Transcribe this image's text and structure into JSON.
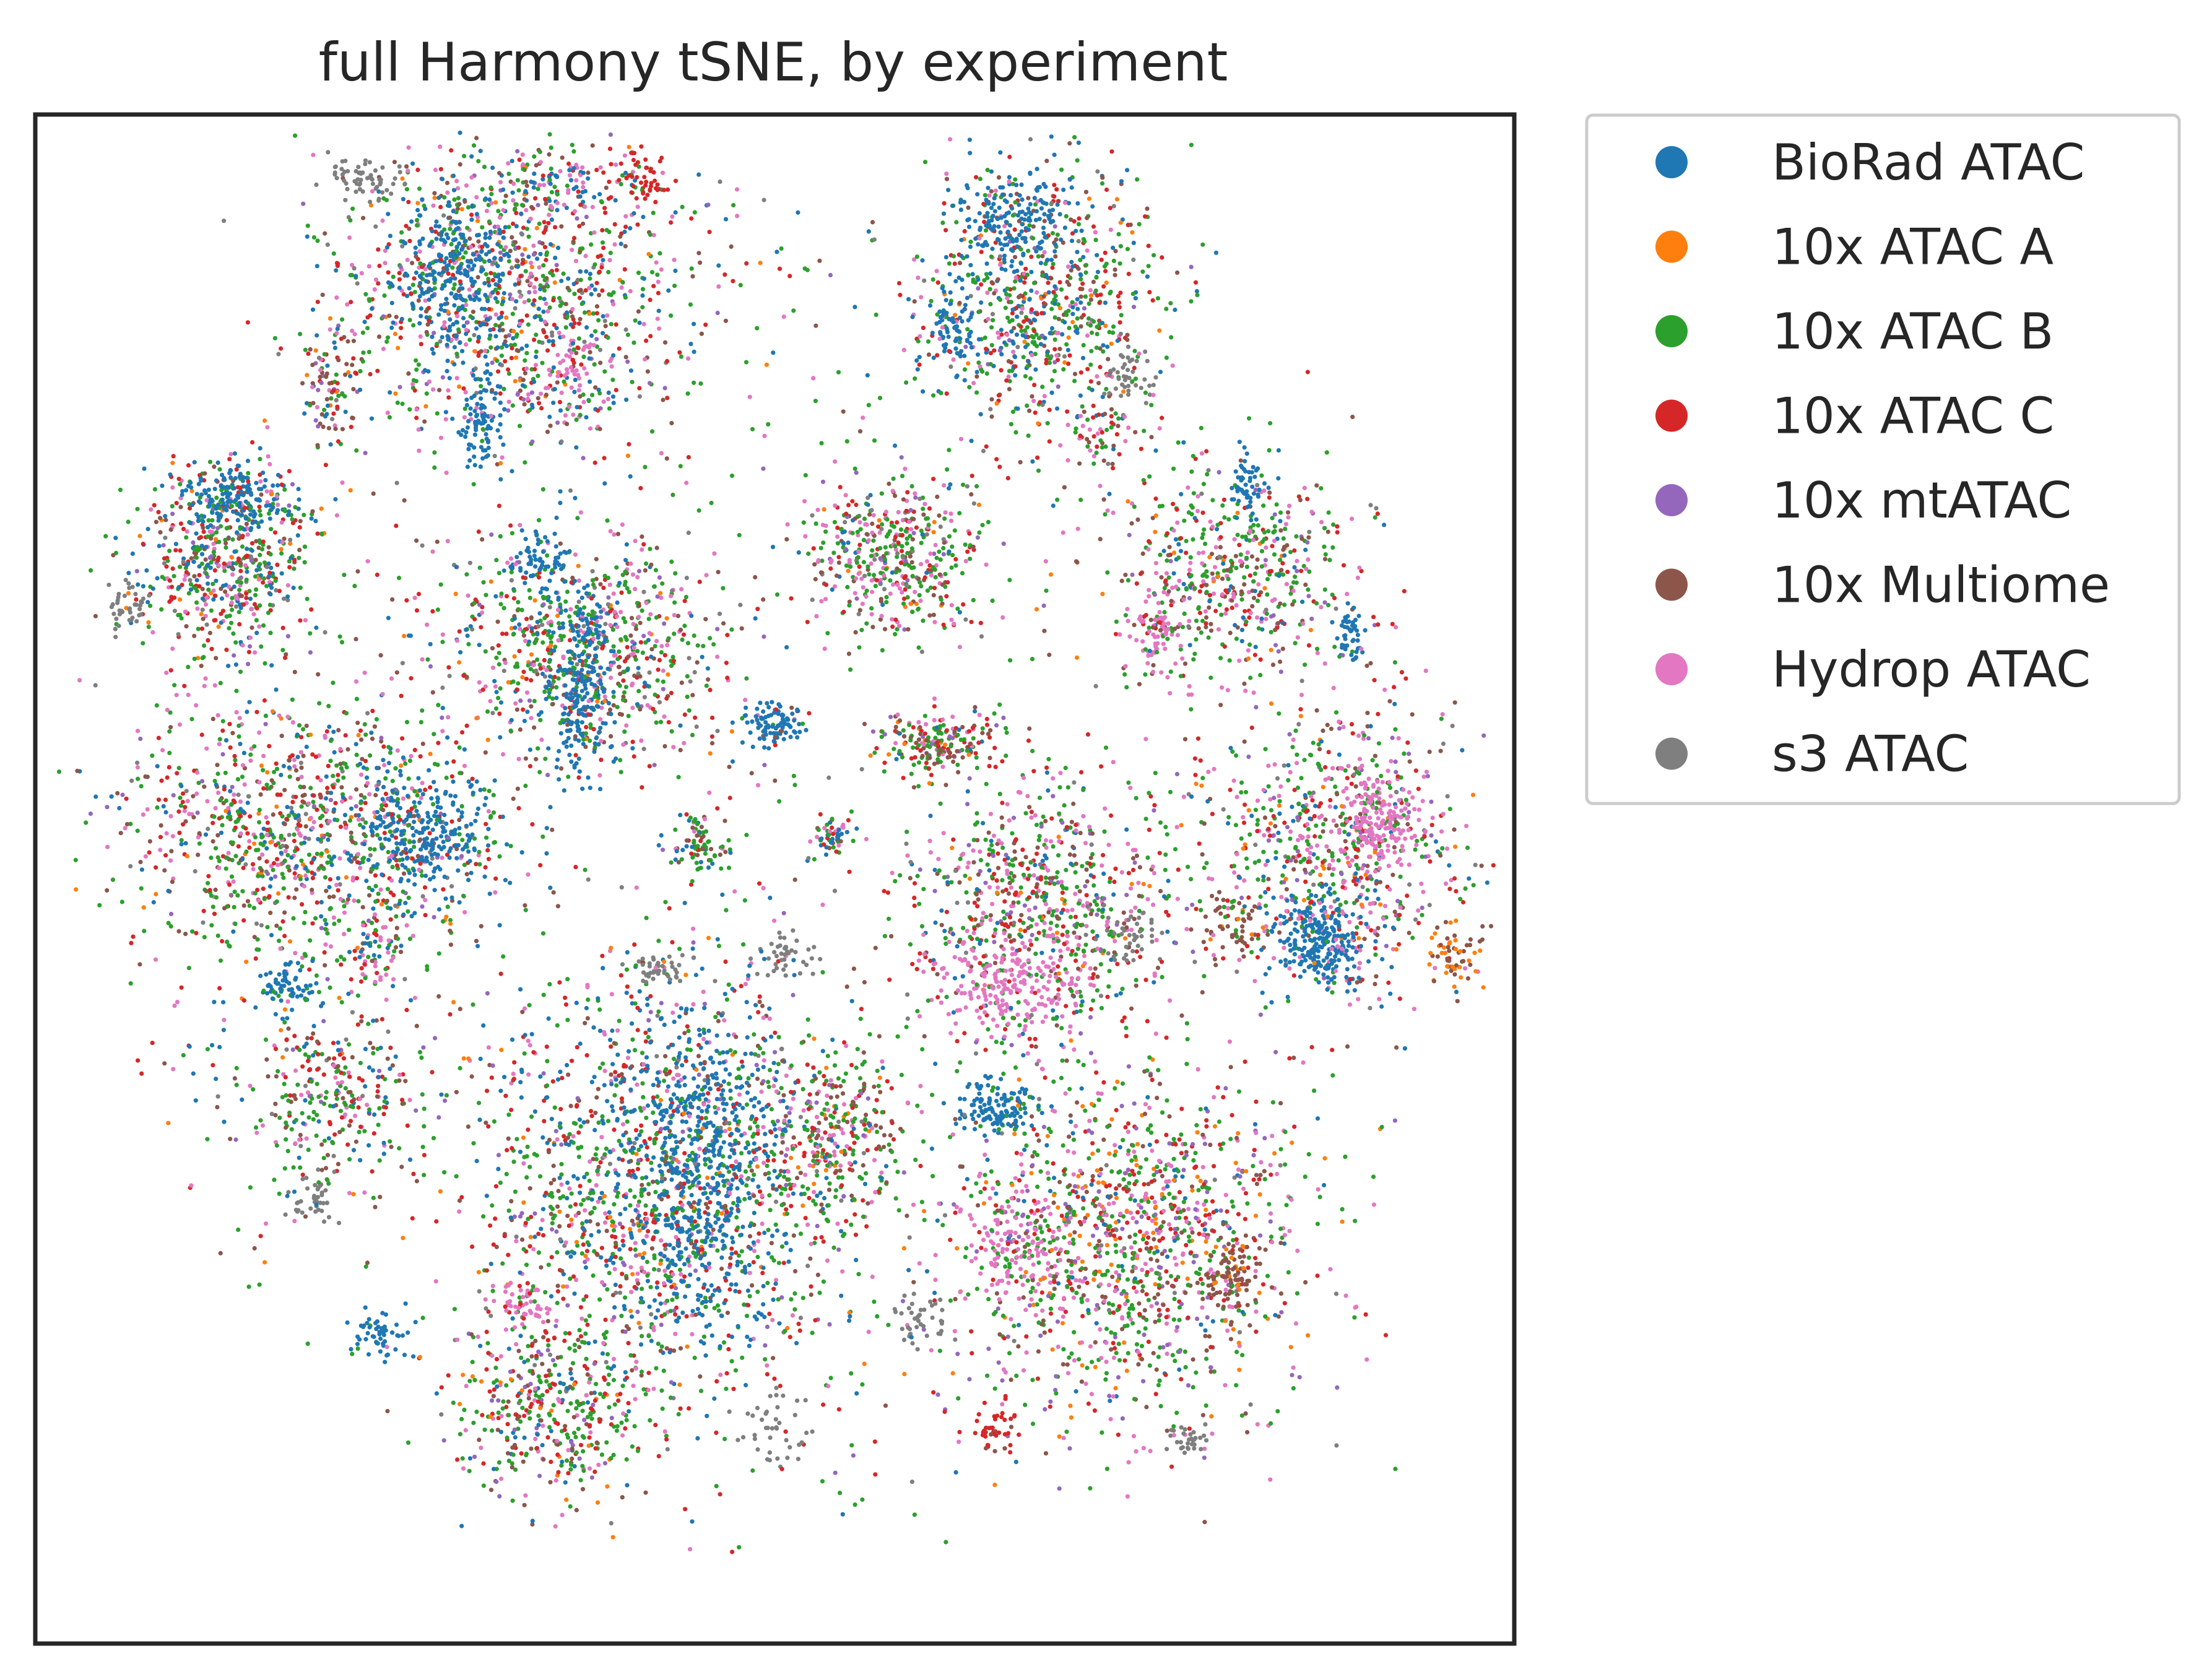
{
  "chart_data": {
    "type": "scatter",
    "title": "full Harmony tSNE, by experiment",
    "xlabel": "",
    "ylabel": "",
    "xlim": [
      -50,
      50
    ],
    "ylim": [
      -50,
      50
    ],
    "ticks": "none",
    "grid": false,
    "legend": {
      "placement": "outside-top-right",
      "marker": "circle"
    },
    "series": [
      {
        "name": "BioRad ATAC",
        "color": "#1f77b4"
      },
      {
        "name": "10x ATAC A",
        "color": "#ff7f0e"
      },
      {
        "name": "10x ATAC B",
        "color": "#2ca02c"
      },
      {
        "name": "10x ATAC C",
        "color": "#d62728"
      },
      {
        "name": "10x mtATAC",
        "color": "#9467bd"
      },
      {
        "name": "10x Multiome",
        "color": "#8c564b"
      },
      {
        "name": "Hydrop ATAC",
        "color": "#e377c2"
      },
      {
        "name": "s3 ATAC",
        "color": "#7f7f7f"
      }
    ],
    "clusters": [
      {
        "cx": -18,
        "cy": 39,
        "rx": 12,
        "ry": 10,
        "n": 1100,
        "mix": [
          0.16,
          0.05,
          0.26,
          0.15,
          0.05,
          0.13,
          0.16,
          0.04
        ]
      },
      {
        "cx": -22,
        "cy": 40,
        "rx": 4,
        "ry": 5,
        "n": 260,
        "mix": [
          0.9,
          0,
          0.04,
          0.02,
          0,
          0.02,
          0.02,
          0
        ]
      },
      {
        "cx": -14,
        "cy": 33,
        "rx": 3,
        "ry": 4,
        "n": 90,
        "mix": [
          0.2,
          0,
          0.2,
          0.05,
          0,
          0.05,
          0.5,
          0
        ]
      },
      {
        "cx": -28,
        "cy": 46,
        "rx": 2.5,
        "ry": 1.5,
        "n": 60,
        "mix": [
          0,
          0,
          0,
          0,
          0,
          0,
          0,
          1
        ]
      },
      {
        "cx": -15,
        "cy": 45,
        "rx": 4,
        "ry": 2.5,
        "n": 80,
        "mix": [
          0.5,
          0,
          0.1,
          0.1,
          0,
          0.1,
          0.2,
          0
        ]
      },
      {
        "cx": -9,
        "cy": 46,
        "rx": 2,
        "ry": 2,
        "n": 60,
        "mix": [
          0,
          0,
          0.1,
          0.85,
          0,
          0.05,
          0,
          0
        ]
      },
      {
        "cx": -30,
        "cy": 32,
        "rx": 2,
        "ry": 4,
        "n": 90,
        "mix": [
          0.1,
          0.05,
          0.2,
          0.1,
          0.05,
          0.3,
          0.15,
          0.05
        ]
      },
      {
        "cx": -20,
        "cy": 30,
        "rx": 1.5,
        "ry": 3,
        "n": 90,
        "mix": [
          0.95,
          0,
          0,
          0,
          0,
          0,
          0.05,
          0
        ]
      },
      {
        "cx": -37,
        "cy": 21,
        "rx": 6,
        "ry": 6,
        "n": 600,
        "mix": [
          0.16,
          0.04,
          0.28,
          0.2,
          0.04,
          0.12,
          0.12,
          0.04
        ]
      },
      {
        "cx": -37,
        "cy": 25,
        "rx": 4,
        "ry": 2,
        "n": 160,
        "mix": [
          0.9,
          0,
          0.05,
          0.03,
          0,
          0,
          0.02,
          0
        ]
      },
      {
        "cx": -44,
        "cy": 18,
        "rx": 1.5,
        "ry": 1.5,
        "n": 40,
        "mix": [
          0,
          0,
          0,
          0,
          0,
          0,
          0,
          1
        ]
      },
      {
        "cx": 18,
        "cy": 38,
        "rx": 8,
        "ry": 9,
        "n": 750,
        "mix": [
          0.18,
          0.03,
          0.32,
          0.17,
          0.03,
          0.12,
          0.1,
          0.05
        ]
      },
      {
        "cx": 16,
        "cy": 43,
        "rx": 4,
        "ry": 3,
        "n": 170,
        "mix": [
          0.92,
          0,
          0.04,
          0,
          0,
          0.02,
          0.02,
          0
        ]
      },
      {
        "cx": 12,
        "cy": 36,
        "rx": 2,
        "ry": 3,
        "n": 80,
        "mix": [
          0.9,
          0,
          0.05,
          0,
          0,
          0,
          0.05,
          0
        ]
      },
      {
        "cx": 24,
        "cy": 33,
        "rx": 2,
        "ry": 2,
        "n": 40,
        "mix": [
          0,
          0,
          0,
          0,
          0,
          0,
          0,
          1
        ]
      },
      {
        "cx": 22,
        "cy": 29,
        "rx": 2,
        "ry": 2,
        "n": 40,
        "mix": [
          0,
          0,
          0.2,
          0.2,
          0,
          0.3,
          0.3,
          0
        ]
      },
      {
        "cx": 8,
        "cy": 21,
        "rx": 6,
        "ry": 5,
        "n": 450,
        "mix": [
          0.05,
          0.03,
          0.33,
          0.13,
          0.03,
          0.13,
          0.25,
          0.05
        ]
      },
      {
        "cx": 31,
        "cy": 20,
        "rx": 8,
        "ry": 7,
        "n": 520,
        "mix": [
          0.08,
          0.04,
          0.32,
          0.16,
          0.04,
          0.16,
          0.18,
          0.02
        ]
      },
      {
        "cx": 26,
        "cy": 16,
        "rx": 2,
        "ry": 3,
        "n": 90,
        "mix": [
          0,
          0,
          0.1,
          0.05,
          0,
          0.05,
          0.8,
          0
        ]
      },
      {
        "cx": 32,
        "cy": 26,
        "rx": 1,
        "ry": 2,
        "n": 50,
        "mix": [
          1,
          0,
          0,
          0,
          0,
          0,
          0,
          0
        ]
      },
      {
        "cx": 39,
        "cy": 16,
        "rx": 1,
        "ry": 2,
        "n": 45,
        "mix": [
          1,
          0,
          0,
          0,
          0,
          0,
          0,
          0
        ]
      },
      {
        "cx": -13,
        "cy": 15,
        "rx": 9,
        "ry": 7,
        "n": 750,
        "mix": [
          0.12,
          0.03,
          0.3,
          0.16,
          0.03,
          0.14,
          0.16,
          0.06
        ]
      },
      {
        "cx": -13,
        "cy": 13,
        "rx": 2,
        "ry": 7,
        "n": 230,
        "mix": [
          0.9,
          0,
          0.04,
          0.02,
          0,
          0.02,
          0.02,
          0
        ]
      },
      {
        "cx": -16,
        "cy": 21,
        "rx": 2,
        "ry": 2,
        "n": 70,
        "mix": [
          0.9,
          0,
          0.05,
          0,
          0,
          0,
          0.05,
          0
        ]
      },
      {
        "cx": -32,
        "cy": 3,
        "rx": 12,
        "ry": 9,
        "n": 1050,
        "mix": [
          0.12,
          0.04,
          0.3,
          0.18,
          0.04,
          0.14,
          0.14,
          0.04
        ]
      },
      {
        "cx": -24,
        "cy": 3,
        "rx": 6,
        "ry": 4,
        "n": 280,
        "mix": [
          0.88,
          0,
          0.05,
          0.03,
          0,
          0.02,
          0.02,
          0
        ]
      },
      {
        "cx": -33,
        "cy": -7,
        "rx": 2,
        "ry": 2,
        "n": 70,
        "mix": [
          0.9,
          0,
          0.05,
          0,
          0,
          0,
          0.05,
          0
        ]
      },
      {
        "cx": -27,
        "cy": -5,
        "rx": 3,
        "ry": 2,
        "n": 60,
        "mix": [
          0.2,
          0,
          0.2,
          0.1,
          0,
          0.1,
          0.4,
          0
        ]
      },
      {
        "cx": -31,
        "cy": -21,
        "rx": 2,
        "ry": 2,
        "n": 40,
        "mix": [
          0,
          0,
          0,
          0,
          0,
          0,
          0,
          1
        ]
      },
      {
        "cx": -30,
        "cy": -14,
        "rx": 6,
        "ry": 6,
        "n": 300,
        "mix": [
          0.1,
          0.04,
          0.32,
          0.2,
          0.04,
          0.14,
          0.12,
          0.04
        ]
      },
      {
        "cx": -8,
        "cy": -20,
        "rx": 12,
        "ry": 14,
        "n": 1400,
        "mix": [
          0.22,
          0.04,
          0.28,
          0.16,
          0.04,
          0.1,
          0.13,
          0.03
        ]
      },
      {
        "cx": -5,
        "cy": -19,
        "rx": 5,
        "ry": 11,
        "n": 560,
        "mix": [
          0.9,
          0,
          0.04,
          0.02,
          0,
          0.02,
          0.02,
          0
        ]
      },
      {
        "cx": -15,
        "cy": -35,
        "rx": 6,
        "ry": 6,
        "n": 400,
        "mix": [
          0.05,
          0.05,
          0.34,
          0.2,
          0.08,
          0.14,
          0.12,
          0.02
        ]
      },
      {
        "cx": -27,
        "cy": -30,
        "rx": 2,
        "ry": 1.5,
        "n": 60,
        "mix": [
          0.95,
          0,
          0.05,
          0,
          0,
          0,
          0,
          0
        ]
      },
      {
        "cx": -17,
        "cy": -28,
        "rx": 2,
        "ry": 1.5,
        "n": 50,
        "mix": [
          0,
          0,
          0.1,
          0.05,
          0,
          0,
          0.85,
          0
        ]
      },
      {
        "cx": 4,
        "cy": -17,
        "rx": 5,
        "ry": 6,
        "n": 350,
        "mix": [
          0.05,
          0.05,
          0.36,
          0.2,
          0.04,
          0.15,
          0.13,
          0.02
        ]
      },
      {
        "cx": 0,
        "cy": -36,
        "rx": 2.5,
        "ry": 2.5,
        "n": 40,
        "mix": [
          0,
          0,
          0,
          0,
          0,
          0,
          0,
          1
        ]
      },
      {
        "cx": 0,
        "cy": 10,
        "rx": 2,
        "ry": 1.5,
        "n": 90,
        "mix": [
          0.93,
          0,
          0.04,
          0.03,
          0,
          0,
          0,
          0
        ]
      },
      {
        "cx": -5,
        "cy": 2,
        "rx": 2,
        "ry": 2,
        "n": 80,
        "mix": [
          0.1,
          0,
          0.5,
          0.1,
          0,
          0.2,
          0.1,
          0
        ]
      },
      {
        "cx": 4,
        "cy": 3,
        "rx": 1.5,
        "ry": 1.2,
        "n": 50,
        "mix": [
          0.3,
          0,
          0.2,
          0.2,
          0,
          0.1,
          0.2,
          0
        ]
      },
      {
        "cx": -8,
        "cy": -6,
        "rx": 2,
        "ry": 1,
        "n": 40,
        "mix": [
          0,
          0,
          0,
          0,
          0,
          0,
          0,
          1
        ]
      },
      {
        "cx": 1,
        "cy": -5,
        "rx": 2,
        "ry": 1.5,
        "n": 40,
        "mix": [
          0,
          0,
          0,
          0,
          0,
          0,
          0,
          1
        ]
      },
      {
        "cx": 11,
        "cy": 9,
        "rx": 4,
        "ry": 2,
        "n": 200,
        "mix": [
          0.05,
          0.05,
          0.3,
          0.2,
          0.05,
          0.25,
          0.1,
          0
        ]
      },
      {
        "cx": 18,
        "cy": -2,
        "rx": 9,
        "ry": 8,
        "n": 750,
        "mix": [
          0.07,
          0.04,
          0.3,
          0.2,
          0.05,
          0.13,
          0.19,
          0.02
        ]
      },
      {
        "cx": 16,
        "cy": -7,
        "rx": 5,
        "ry": 3,
        "n": 200,
        "mix": [
          0,
          0,
          0.05,
          0,
          0,
          0,
          0.95,
          0
        ]
      },
      {
        "cx": 24,
        "cy": -4,
        "rx": 2,
        "ry": 2,
        "n": 40,
        "mix": [
          0,
          0,
          0,
          0,
          0,
          0,
          0,
          1
        ]
      },
      {
        "cx": 31,
        "cy": -3,
        "rx": 2,
        "ry": 2,
        "n": 50,
        "mix": [
          0,
          0.1,
          0,
          0,
          0,
          0.9,
          0,
          0
        ]
      },
      {
        "cx": 38,
        "cy": 2,
        "rx": 9,
        "ry": 9,
        "n": 700,
        "mix": [
          0.08,
          0.06,
          0.27,
          0.15,
          0.06,
          0.12,
          0.22,
          0.04
        ]
      },
      {
        "cx": 41,
        "cy": 4,
        "rx": 3,
        "ry": 3,
        "n": 180,
        "mix": [
          0,
          0,
          0.05,
          0,
          0,
          0,
          0.95,
          0
        ]
      },
      {
        "cx": 37,
        "cy": -4,
        "rx": 3,
        "ry": 3,
        "n": 260,
        "mix": [
          0.95,
          0,
          0.02,
          0,
          0,
          0,
          0.03,
          0
        ]
      },
      {
        "cx": 46,
        "cy": -5,
        "rx": 2,
        "ry": 2,
        "n": 60,
        "mix": [
          0,
          0.4,
          0,
          0,
          0,
          0.6,
          0,
          0
        ]
      },
      {
        "cx": 24,
        "cy": -24,
        "rx": 12,
        "ry": 12,
        "n": 1300,
        "mix": [
          0.05,
          0.08,
          0.3,
          0.16,
          0.1,
          0.12,
          0.17,
          0.02
        ]
      },
      {
        "cx": 15,
        "cy": -15,
        "rx": 3,
        "ry": 2,
        "n": 130,
        "mix": [
          0.95,
          0,
          0.05,
          0,
          0,
          0,
          0,
          0
        ]
      },
      {
        "cx": 16,
        "cy": -24,
        "rx": 4,
        "ry": 4,
        "n": 130,
        "mix": [
          0,
          0,
          0.1,
          0.05,
          0,
          0,
          0.85,
          0
        ]
      },
      {
        "cx": 31,
        "cy": -26,
        "rx": 2,
        "ry": 3,
        "n": 90,
        "mix": [
          0,
          0.1,
          0,
          0,
          0,
          0.9,
          0,
          0
        ]
      },
      {
        "cx": 10,
        "cy": -29,
        "rx": 2,
        "ry": 2,
        "n": 40,
        "mix": [
          0,
          0,
          0,
          0,
          0,
          0,
          0,
          1
        ]
      },
      {
        "cx": 28,
        "cy": -37,
        "rx": 1.5,
        "ry": 1,
        "n": 30,
        "mix": [
          0,
          0,
          0,
          0,
          0,
          0,
          0,
          1
        ]
      },
      {
        "cx": 15,
        "cy": -36,
        "rx": 1.5,
        "ry": 1.5,
        "n": 40,
        "mix": [
          0,
          0,
          0,
          0.9,
          0,
          0.1,
          0,
          0
        ]
      },
      {
        "cx": 0,
        "cy": 0,
        "rx": 45,
        "ry": 45,
        "n": 900,
        "mix": [
          0.12,
          0.05,
          0.28,
          0.16,
          0.05,
          0.14,
          0.15,
          0.05
        ]
      }
    ]
  }
}
